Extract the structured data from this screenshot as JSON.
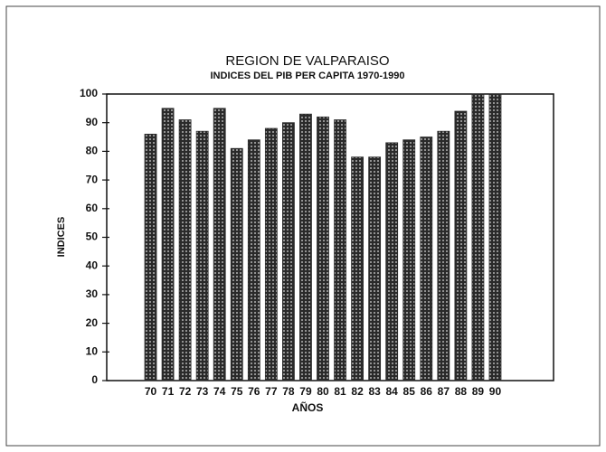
{
  "chart_data": {
    "type": "bar",
    "title": "REGION DE VALPARAISO",
    "subtitle": "INDICES DEL PIB PER CAPITA 1970-1990",
    "x_label": "AÑOS",
    "y_label": "INDICES",
    "categories": [
      "70",
      "71",
      "72",
      "73",
      "74",
      "75",
      "76",
      "77",
      "78",
      "79",
      "80",
      "81",
      "82",
      "83",
      "84",
      "85",
      "86",
      "87",
      "88",
      "89",
      "90"
    ],
    "values": [
      86,
      95,
      91,
      87,
      95,
      81,
      84,
      88,
      90,
      93,
      92,
      91,
      78,
      78,
      83,
      84,
      85,
      87,
      94,
      100,
      100
    ],
    "color": "#2a2a2a",
    "ylim": [
      0,
      100
    ],
    "yticks": [
      0,
      10,
      20,
      30,
      40,
      50,
      60,
      70,
      80,
      90,
      100
    ]
  }
}
